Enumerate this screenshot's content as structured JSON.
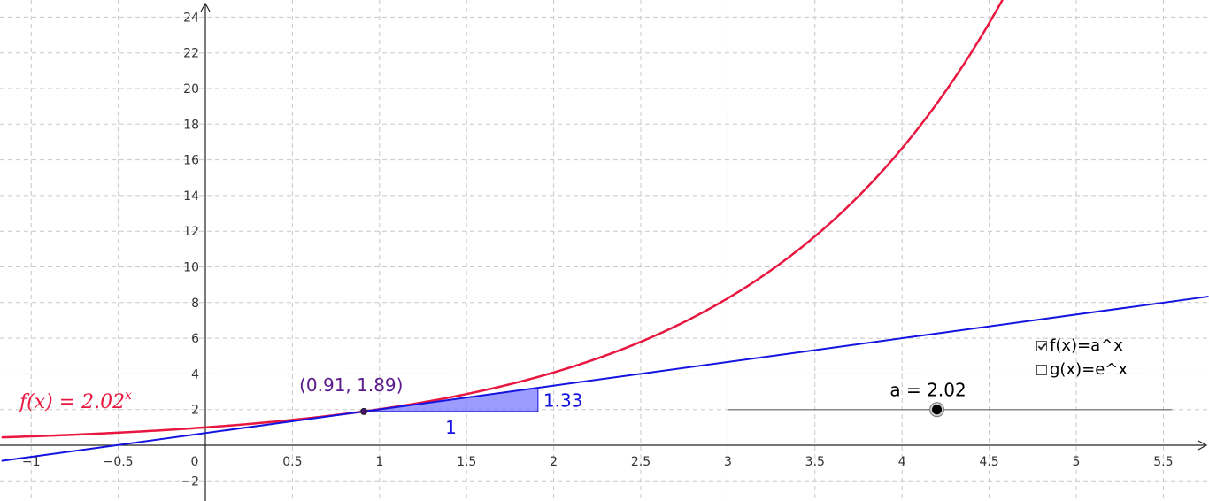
{
  "chart_data": {
    "type": "line",
    "title": "",
    "xlabel": "",
    "ylabel": "",
    "xlim": [
      -1.17,
      5.76
    ],
    "ylim": [
      -2.5,
      25
    ],
    "grid": true,
    "x_ticks": [
      -1,
      -0.5,
      0,
      0.5,
      1,
      1.5,
      2,
      2.5,
      3,
      3.5,
      4,
      4.5,
      5,
      5.5
    ],
    "x_tick_labels": [
      "−1",
      "−0.5",
      "0",
      "0.5",
      "1",
      "1.5",
      "2",
      "2.5",
      "3",
      "3.5",
      "4",
      "4.5",
      "5",
      "5.5"
    ],
    "y_ticks": [
      -2,
      2,
      4,
      6,
      8,
      10,
      12,
      14,
      16,
      18,
      20,
      22,
      24
    ],
    "y_tick_labels": [
      "−2",
      "2",
      "4",
      "6",
      "8",
      "10",
      "12",
      "14",
      "16",
      "18",
      "20",
      "22",
      "24"
    ],
    "series": [
      {
        "kind": "exponential",
        "base": 2.02,
        "color": "#e8173f",
        "label": "f(x) = 2.02",
        "label_exponent": "x"
      },
      {
        "kind": "tangent",
        "point": [
          0.91,
          1.89
        ],
        "slope": 1.33,
        "color": "#1414e0"
      }
    ],
    "point": {
      "x": 0.91,
      "y": 1.89,
      "label": "(0.91, 1.89)",
      "color": "#5c1a8c"
    },
    "slope_triangle": {
      "run_label": "1",
      "rise_label": "1.33",
      "fill": "#7b7bff",
      "stroke": "#1414e0"
    }
  },
  "slider": {
    "label": "a = 2.02",
    "value": 2.02,
    "track_x": [
      3,
      5.55
    ],
    "track_y": 2,
    "knob_x": 4.2
  },
  "checkboxes": [
    {
      "label": "f(x)=a^x",
      "checked": true
    },
    {
      "label": "g(x)=e^x",
      "checked": false
    }
  ]
}
